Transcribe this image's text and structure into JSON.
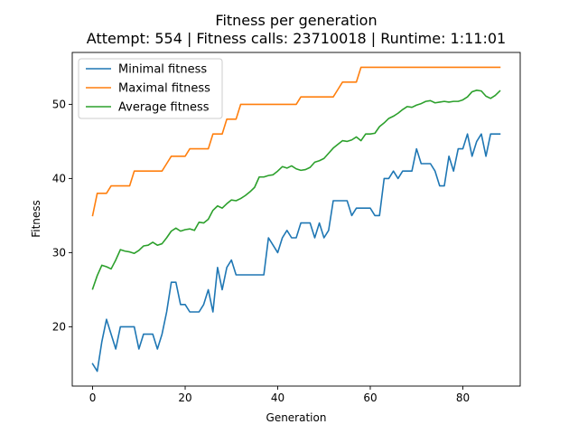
{
  "chart_data": {
    "type": "line",
    "title": "Fitness per generation",
    "subtitle": "Attempt: 554 | Fitness calls: 23710018 | Runtime: 1:11:01",
    "xlabel": "Generation",
    "ylabel": "Fitness",
    "xlim": [
      -4.4,
      92.4
    ],
    "ylim": [
      12.0,
      57.0
    ],
    "xticks": [
      0,
      20,
      40,
      60,
      80
    ],
    "yticks": [
      20,
      30,
      40,
      50
    ],
    "grid": false,
    "legend_position": "top-left",
    "series": [
      {
        "name": "Minimal fitness",
        "color": "#1f77b4",
        "x": [
          0,
          1,
          2,
          3,
          4,
          5,
          6,
          7,
          8,
          9,
          10,
          11,
          12,
          13,
          14,
          15,
          16,
          17,
          18,
          19,
          20,
          21,
          22,
          23,
          24,
          25,
          26,
          27,
          28,
          29,
          30,
          31,
          32,
          33,
          34,
          35,
          36,
          37,
          38,
          39,
          40,
          41,
          42,
          43,
          44,
          45,
          46,
          47,
          48,
          49,
          50,
          51,
          52,
          53,
          54,
          55,
          56,
          57,
          58,
          59,
          60,
          61,
          62,
          63,
          64,
          65,
          66,
          67,
          68,
          69,
          70,
          71,
          72,
          73,
          74,
          75,
          76,
          77,
          78,
          79,
          80,
          81,
          82,
          83,
          84,
          85,
          86,
          87,
          88
        ],
        "y": [
          15,
          14,
          18,
          21,
          19,
          17,
          20,
          20,
          20,
          20,
          17,
          19,
          19,
          19,
          17,
          19,
          22,
          26,
          26,
          23,
          23,
          22,
          22,
          22,
          23,
          25,
          22,
          28,
          25,
          28,
          29,
          27,
          27,
          27,
          27,
          27,
          27,
          27,
          32,
          31,
          30,
          32,
          33,
          32,
          32,
          34,
          34,
          34,
          32,
          34,
          32,
          33,
          37,
          37,
          37,
          37,
          35,
          36,
          36,
          36,
          36,
          35,
          35,
          40,
          40,
          41,
          40,
          41,
          41,
          41,
          44,
          42,
          42,
          42,
          41,
          39,
          39,
          43,
          41,
          44,
          44,
          46,
          43,
          45,
          46,
          43,
          46,
          46,
          46
        ]
      },
      {
        "name": "Maximal fitness",
        "color": "#ff7f0e",
        "x": [
          0,
          1,
          2,
          3,
          4,
          5,
          6,
          7,
          8,
          9,
          10,
          11,
          12,
          13,
          14,
          15,
          16,
          17,
          18,
          19,
          20,
          21,
          22,
          23,
          24,
          25,
          26,
          27,
          28,
          29,
          30,
          31,
          32,
          33,
          34,
          35,
          36,
          37,
          38,
          39,
          40,
          41,
          42,
          43,
          44,
          45,
          46,
          47,
          48,
          49,
          50,
          51,
          52,
          53,
          54,
          55,
          56,
          57,
          58,
          59,
          60,
          61,
          62,
          63,
          64,
          65,
          66,
          67,
          68,
          69,
          70,
          71,
          72,
          73,
          74,
          75,
          76,
          77,
          78,
          79,
          80,
          81,
          82,
          83,
          84,
          85,
          86,
          87,
          88
        ],
        "y": [
          35,
          38,
          38,
          38,
          39,
          39,
          39,
          39,
          39,
          41,
          41,
          41,
          41,
          41,
          41,
          41,
          42,
          43,
          43,
          43,
          43,
          44,
          44,
          44,
          44,
          44,
          46,
          46,
          46,
          48,
          48,
          48,
          50,
          50,
          50,
          50,
          50,
          50,
          50,
          50,
          50,
          50,
          50,
          50,
          50,
          51,
          51,
          51,
          51,
          51,
          51,
          51,
          51,
          52,
          53,
          53,
          53,
          53,
          55,
          55,
          55,
          55,
          55,
          55,
          55,
          55,
          55,
          55,
          55,
          55,
          55,
          55,
          55,
          55,
          55,
          55,
          55,
          55,
          55,
          55,
          55,
          55,
          55,
          55,
          55,
          55,
          55,
          55,
          55
        ]
      },
      {
        "name": "Average fitness",
        "color": "#2ca02c",
        "x": [
          0,
          1,
          2,
          3,
          4,
          5,
          6,
          7,
          8,
          9,
          10,
          11,
          12,
          13,
          14,
          15,
          16,
          17,
          18,
          19,
          20,
          21,
          22,
          23,
          24,
          25,
          26,
          27,
          28,
          29,
          30,
          31,
          32,
          33,
          34,
          35,
          36,
          37,
          38,
          39,
          40,
          41,
          42,
          43,
          44,
          45,
          46,
          47,
          48,
          49,
          50,
          51,
          52,
          53,
          54,
          55,
          56,
          57,
          58,
          59,
          60,
          61,
          62,
          63,
          64,
          65,
          66,
          67,
          68,
          69,
          70,
          71,
          72,
          73,
          74,
          75,
          76,
          77,
          78,
          79,
          80,
          81,
          82,
          83,
          84,
          85,
          86,
          87,
          88
        ],
        "y": [
          25.1,
          26.9,
          28.3,
          28.1,
          27.8,
          29.0,
          30.4,
          30.2,
          30.1,
          29.9,
          30.3,
          30.9,
          31.0,
          31.4,
          31.0,
          31.2,
          32.0,
          32.9,
          33.3,
          32.9,
          33.1,
          33.2,
          33.0,
          34.1,
          34.0,
          34.5,
          35.7,
          36.3,
          36.0,
          36.6,
          37.1,
          37.0,
          37.3,
          37.7,
          38.2,
          38.8,
          40.2,
          40.2,
          40.4,
          40.5,
          41.0,
          41.6,
          41.4,
          41.7,
          41.3,
          41.1,
          41.2,
          41.5,
          42.2,
          42.4,
          42.7,
          43.4,
          44.1,
          44.6,
          45.1,
          45.0,
          45.2,
          45.6,
          45.1,
          46.0,
          46.0,
          46.1,
          47.0,
          47.5,
          48.1,
          48.4,
          48.8,
          49.3,
          49.7,
          49.6,
          49.9,
          50.1,
          50.4,
          50.5,
          50.2,
          50.3,
          50.4,
          50.3,
          50.4,
          50.4,
          50.6,
          51.0,
          51.7,
          51.9,
          51.8,
          51.1,
          50.8,
          51.2,
          51.8
        ]
      }
    ]
  }
}
